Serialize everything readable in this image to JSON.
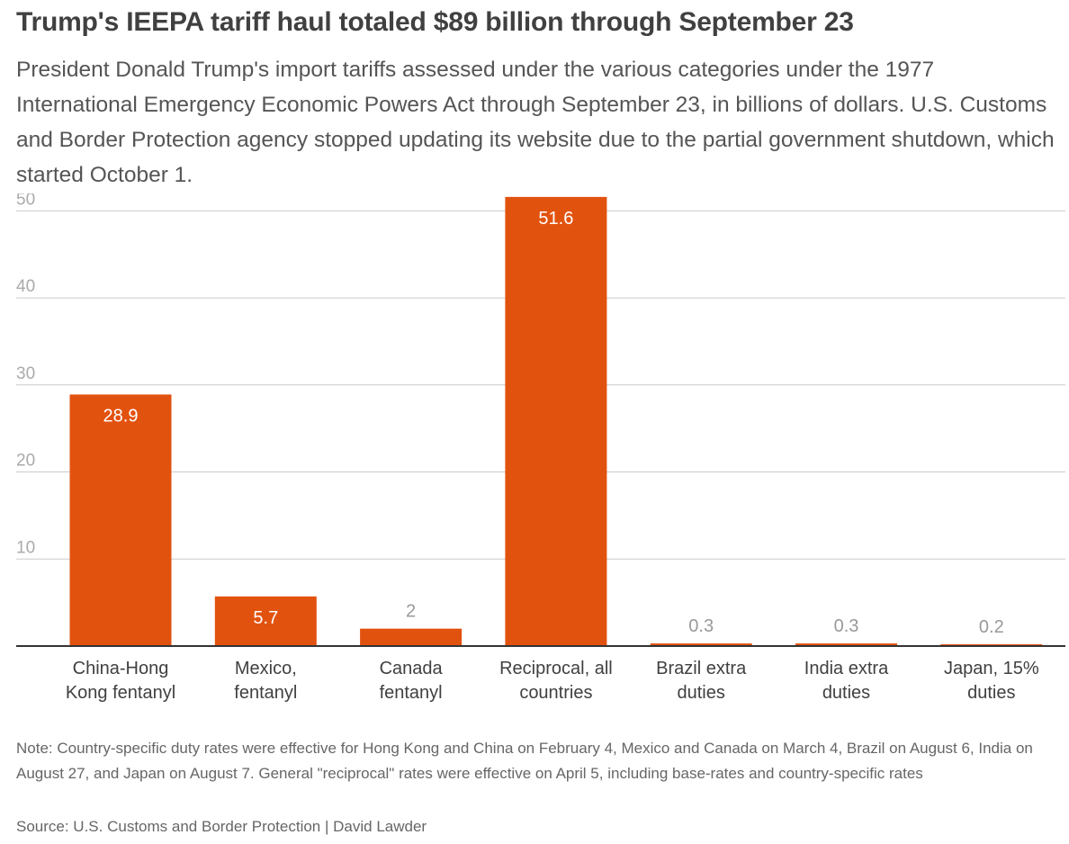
{
  "header": {
    "title": "Trump's IEEPA tariff haul totaled $89 billion through September 23",
    "subtitle": "President Donald Trump's import tariffs assessed under the various categories under the 1977 International Emergency Economic Powers Act through September 23, in billions of dollars. U.S. Customs and Border Protection agency stopped updating its website due to the partial government shutdown, which started October 1."
  },
  "chart_data": {
    "type": "bar",
    "categories": [
      [
        "China-Hong",
        "Kong fentanyl"
      ],
      [
        "Mexico,",
        "fentanyl"
      ],
      [
        "Canada",
        "fentanyl"
      ],
      [
        "Reciprocal, all",
        "countries"
      ],
      [
        "Brazil extra",
        "duties"
      ],
      [
        "India extra",
        "duties"
      ],
      [
        "Japan, 15%",
        "duties"
      ]
    ],
    "values": [
      28.9,
      5.7,
      2,
      51.6,
      0.3,
      0.3,
      0.2
    ],
    "value_labels": [
      "28.9",
      "5.7",
      "2",
      "51.6",
      "0.3",
      "0.3",
      "0.2"
    ],
    "ylim": [
      0,
      52
    ],
    "yticks": [
      10,
      20,
      30,
      40,
      50
    ],
    "grid": true,
    "colors": {
      "bar": "#e2520f",
      "grid": "#cccccc",
      "axis": "#333333",
      "tick_label": "#aaaaaa",
      "inside_label": "#ffffff",
      "outside_label": "#999999",
      "category_label": "#404040"
    }
  },
  "footer": {
    "note": "Note: Country-specific duty rates were effective for Hong Kong and China on February 4, Mexico and Canada on March 4, Brazil on August 6, India on August 27, and Japan on August 7. General \"reciprocal\" rates were effective on April 5, including base-rates and country-specific rates",
    "source": "Source: U.S. Customs and Border Protection | David Lawder"
  }
}
